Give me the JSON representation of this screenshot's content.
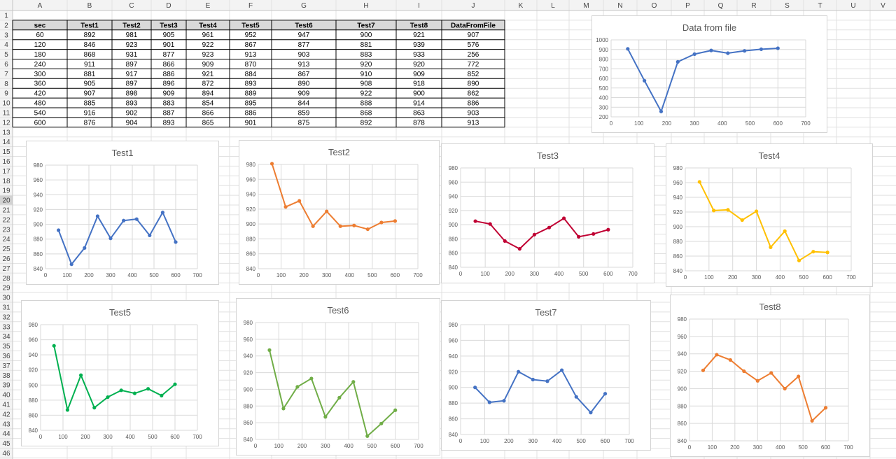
{
  "sheet": {
    "columns": [
      "A",
      "B",
      "C",
      "D",
      "E",
      "F",
      "G",
      "H",
      "I",
      "J",
      "K",
      "L",
      "M",
      "N",
      "O",
      "P",
      "Q",
      "R",
      "S",
      "T",
      "U",
      "V"
    ],
    "row_count": 46,
    "selected_row": 20,
    "table": {
      "headers": [
        "sec",
        "Test1",
        "Test2",
        "Test3",
        "Test4",
        "Test5",
        "Test6",
        "Test7",
        "Test8",
        "DataFromFile"
      ],
      "rows": [
        [
          60,
          892,
          981,
          905,
          961,
          952,
          947,
          900,
          921,
          907
        ],
        [
          120,
          846,
          923,
          901,
          922,
          867,
          877,
          881,
          939,
          576
        ],
        [
          180,
          868,
          931,
          877,
          923,
          913,
          903,
          883,
          933,
          256
        ],
        [
          240,
          911,
          897,
          866,
          909,
          870,
          913,
          920,
          920,
          772
        ],
        [
          300,
          881,
          917,
          886,
          921,
          884,
          867,
          910,
          909,
          852
        ],
        [
          360,
          905,
          897,
          896,
          872,
          893,
          890,
          908,
          918,
          890
        ],
        [
          420,
          907,
          898,
          909,
          894,
          889,
          909,
          922,
          900,
          862
        ],
        [
          480,
          885,
          893,
          883,
          854,
          895,
          844,
          888,
          914,
          886
        ],
        [
          540,
          916,
          902,
          887,
          866,
          886,
          859,
          868,
          863,
          903
        ],
        [
          600,
          876,
          904,
          893,
          865,
          901,
          875,
          892,
          878,
          913
        ]
      ]
    }
  },
  "chart_data": [
    {
      "type": "line",
      "title": "Data from file",
      "x": [
        60,
        120,
        180,
        240,
        300,
        360,
        420,
        480,
        540,
        600
      ],
      "series": [
        {
          "values": [
            907,
            576,
            256,
            772,
            852,
            890,
            862,
            886,
            903,
            913
          ],
          "color": "#4472C4"
        }
      ],
      "xlim": [
        0,
        700
      ],
      "xticks": [
        0,
        100,
        200,
        300,
        400,
        500,
        600,
        700
      ],
      "ylim": [
        200,
        1000
      ],
      "yticks": [
        200,
        300,
        400,
        500,
        600,
        700,
        800,
        900,
        1000
      ],
      "grid": true
    },
    {
      "type": "line",
      "title": "Test1",
      "x": [
        60,
        120,
        180,
        240,
        300,
        360,
        420,
        480,
        540,
        600
      ],
      "series": [
        {
          "values": [
            892,
            846,
            868,
            911,
            881,
            905,
            907,
            885,
            916,
            876
          ],
          "color": "#4472C4"
        }
      ],
      "xlim": [
        0,
        700
      ],
      "xticks": [
        0,
        100,
        200,
        300,
        400,
        500,
        600,
        700
      ],
      "ylim": [
        840,
        980
      ],
      "yticks": [
        840,
        860,
        880,
        900,
        920,
        940,
        960,
        980
      ],
      "grid": true
    },
    {
      "type": "line",
      "title": "Test2",
      "x": [
        60,
        120,
        180,
        240,
        300,
        360,
        420,
        480,
        540,
        600
      ],
      "series": [
        {
          "values": [
            981,
            923,
            931,
            897,
            917,
            897,
            898,
            893,
            902,
            904
          ],
          "color": "#ED7D31"
        }
      ],
      "xlim": [
        0,
        700
      ],
      "xticks": [
        0,
        100,
        200,
        300,
        400,
        500,
        600,
        700
      ],
      "ylim": [
        840,
        980
      ],
      "yticks": [
        840,
        860,
        880,
        900,
        920,
        940,
        960,
        980
      ],
      "grid": true
    },
    {
      "type": "line",
      "title": "Test3",
      "x": [
        60,
        120,
        180,
        240,
        300,
        360,
        420,
        480,
        540,
        600
      ],
      "series": [
        {
          "values": [
            905,
            901,
            877,
            866,
            886,
            896,
            909,
            883,
            887,
            893
          ],
          "color": "#C00033"
        }
      ],
      "xlim": [
        0,
        700
      ],
      "xticks": [
        0,
        100,
        200,
        300,
        400,
        500,
        600,
        700
      ],
      "ylim": [
        840,
        980
      ],
      "yticks": [
        840,
        860,
        880,
        900,
        920,
        940,
        960,
        980
      ],
      "grid": true
    },
    {
      "type": "line",
      "title": "Test4",
      "x": [
        60,
        120,
        180,
        240,
        300,
        360,
        420,
        480,
        540,
        600
      ],
      "series": [
        {
          "values": [
            961,
            922,
            923,
            909,
            921,
            872,
            894,
            854,
            866,
            865
          ],
          "color": "#FFC000"
        }
      ],
      "xlim": [
        0,
        700
      ],
      "xticks": [
        0,
        100,
        200,
        300,
        400,
        500,
        600,
        700
      ],
      "ylim": [
        840,
        980
      ],
      "yticks": [
        840,
        860,
        880,
        900,
        920,
        940,
        960,
        980
      ],
      "grid": true
    },
    {
      "type": "line",
      "title": "Test5",
      "x": [
        60,
        120,
        180,
        240,
        300,
        360,
        420,
        480,
        540,
        600
      ],
      "series": [
        {
          "values": [
            952,
            867,
            913,
            870,
            884,
            893,
            889,
            895,
            886,
            901
          ],
          "color": "#00B050"
        }
      ],
      "xlim": [
        0,
        700
      ],
      "xticks": [
        0,
        100,
        200,
        300,
        400,
        500,
        600,
        700
      ],
      "ylim": [
        840,
        980
      ],
      "yticks": [
        840,
        860,
        880,
        900,
        920,
        940,
        960,
        980
      ],
      "grid": true
    },
    {
      "type": "line",
      "title": "Test6",
      "x": [
        60,
        120,
        180,
        240,
        300,
        360,
        420,
        480,
        540,
        600
      ],
      "series": [
        {
          "values": [
            947,
            877,
            903,
            913,
            867,
            890,
            909,
            844,
            859,
            875
          ],
          "color": "#70AD47"
        }
      ],
      "xlim": [
        0,
        700
      ],
      "xticks": [
        0,
        100,
        200,
        300,
        400,
        500,
        600,
        700
      ],
      "ylim": [
        840,
        980
      ],
      "yticks": [
        840,
        860,
        880,
        900,
        920,
        940,
        960,
        980
      ],
      "grid": true
    },
    {
      "type": "line",
      "title": "Test7",
      "x": [
        60,
        120,
        180,
        240,
        300,
        360,
        420,
        480,
        540,
        600
      ],
      "series": [
        {
          "values": [
            900,
            881,
            883,
            920,
            910,
            908,
            922,
            888,
            868,
            892
          ],
          "color": "#4472C4"
        }
      ],
      "xlim": [
        0,
        700
      ],
      "xticks": [
        0,
        100,
        200,
        300,
        400,
        500,
        600,
        700
      ],
      "ylim": [
        840,
        980
      ],
      "yticks": [
        840,
        860,
        880,
        900,
        920,
        940,
        960,
        980
      ],
      "grid": true
    },
    {
      "type": "line",
      "title": "Test8",
      "x": [
        60,
        120,
        180,
        240,
        300,
        360,
        420,
        480,
        540,
        600
      ],
      "series": [
        {
          "values": [
            921,
            939,
            933,
            920,
            909,
            918,
            900,
            914,
            863,
            878
          ],
          "color": "#ED7D31"
        }
      ],
      "xlim": [
        0,
        700
      ],
      "xticks": [
        0,
        100,
        200,
        300,
        400,
        500,
        600,
        700
      ],
      "ylim": [
        840,
        980
      ],
      "yticks": [
        840,
        860,
        880,
        900,
        920,
        940,
        960,
        980
      ],
      "grid": true
    }
  ]
}
